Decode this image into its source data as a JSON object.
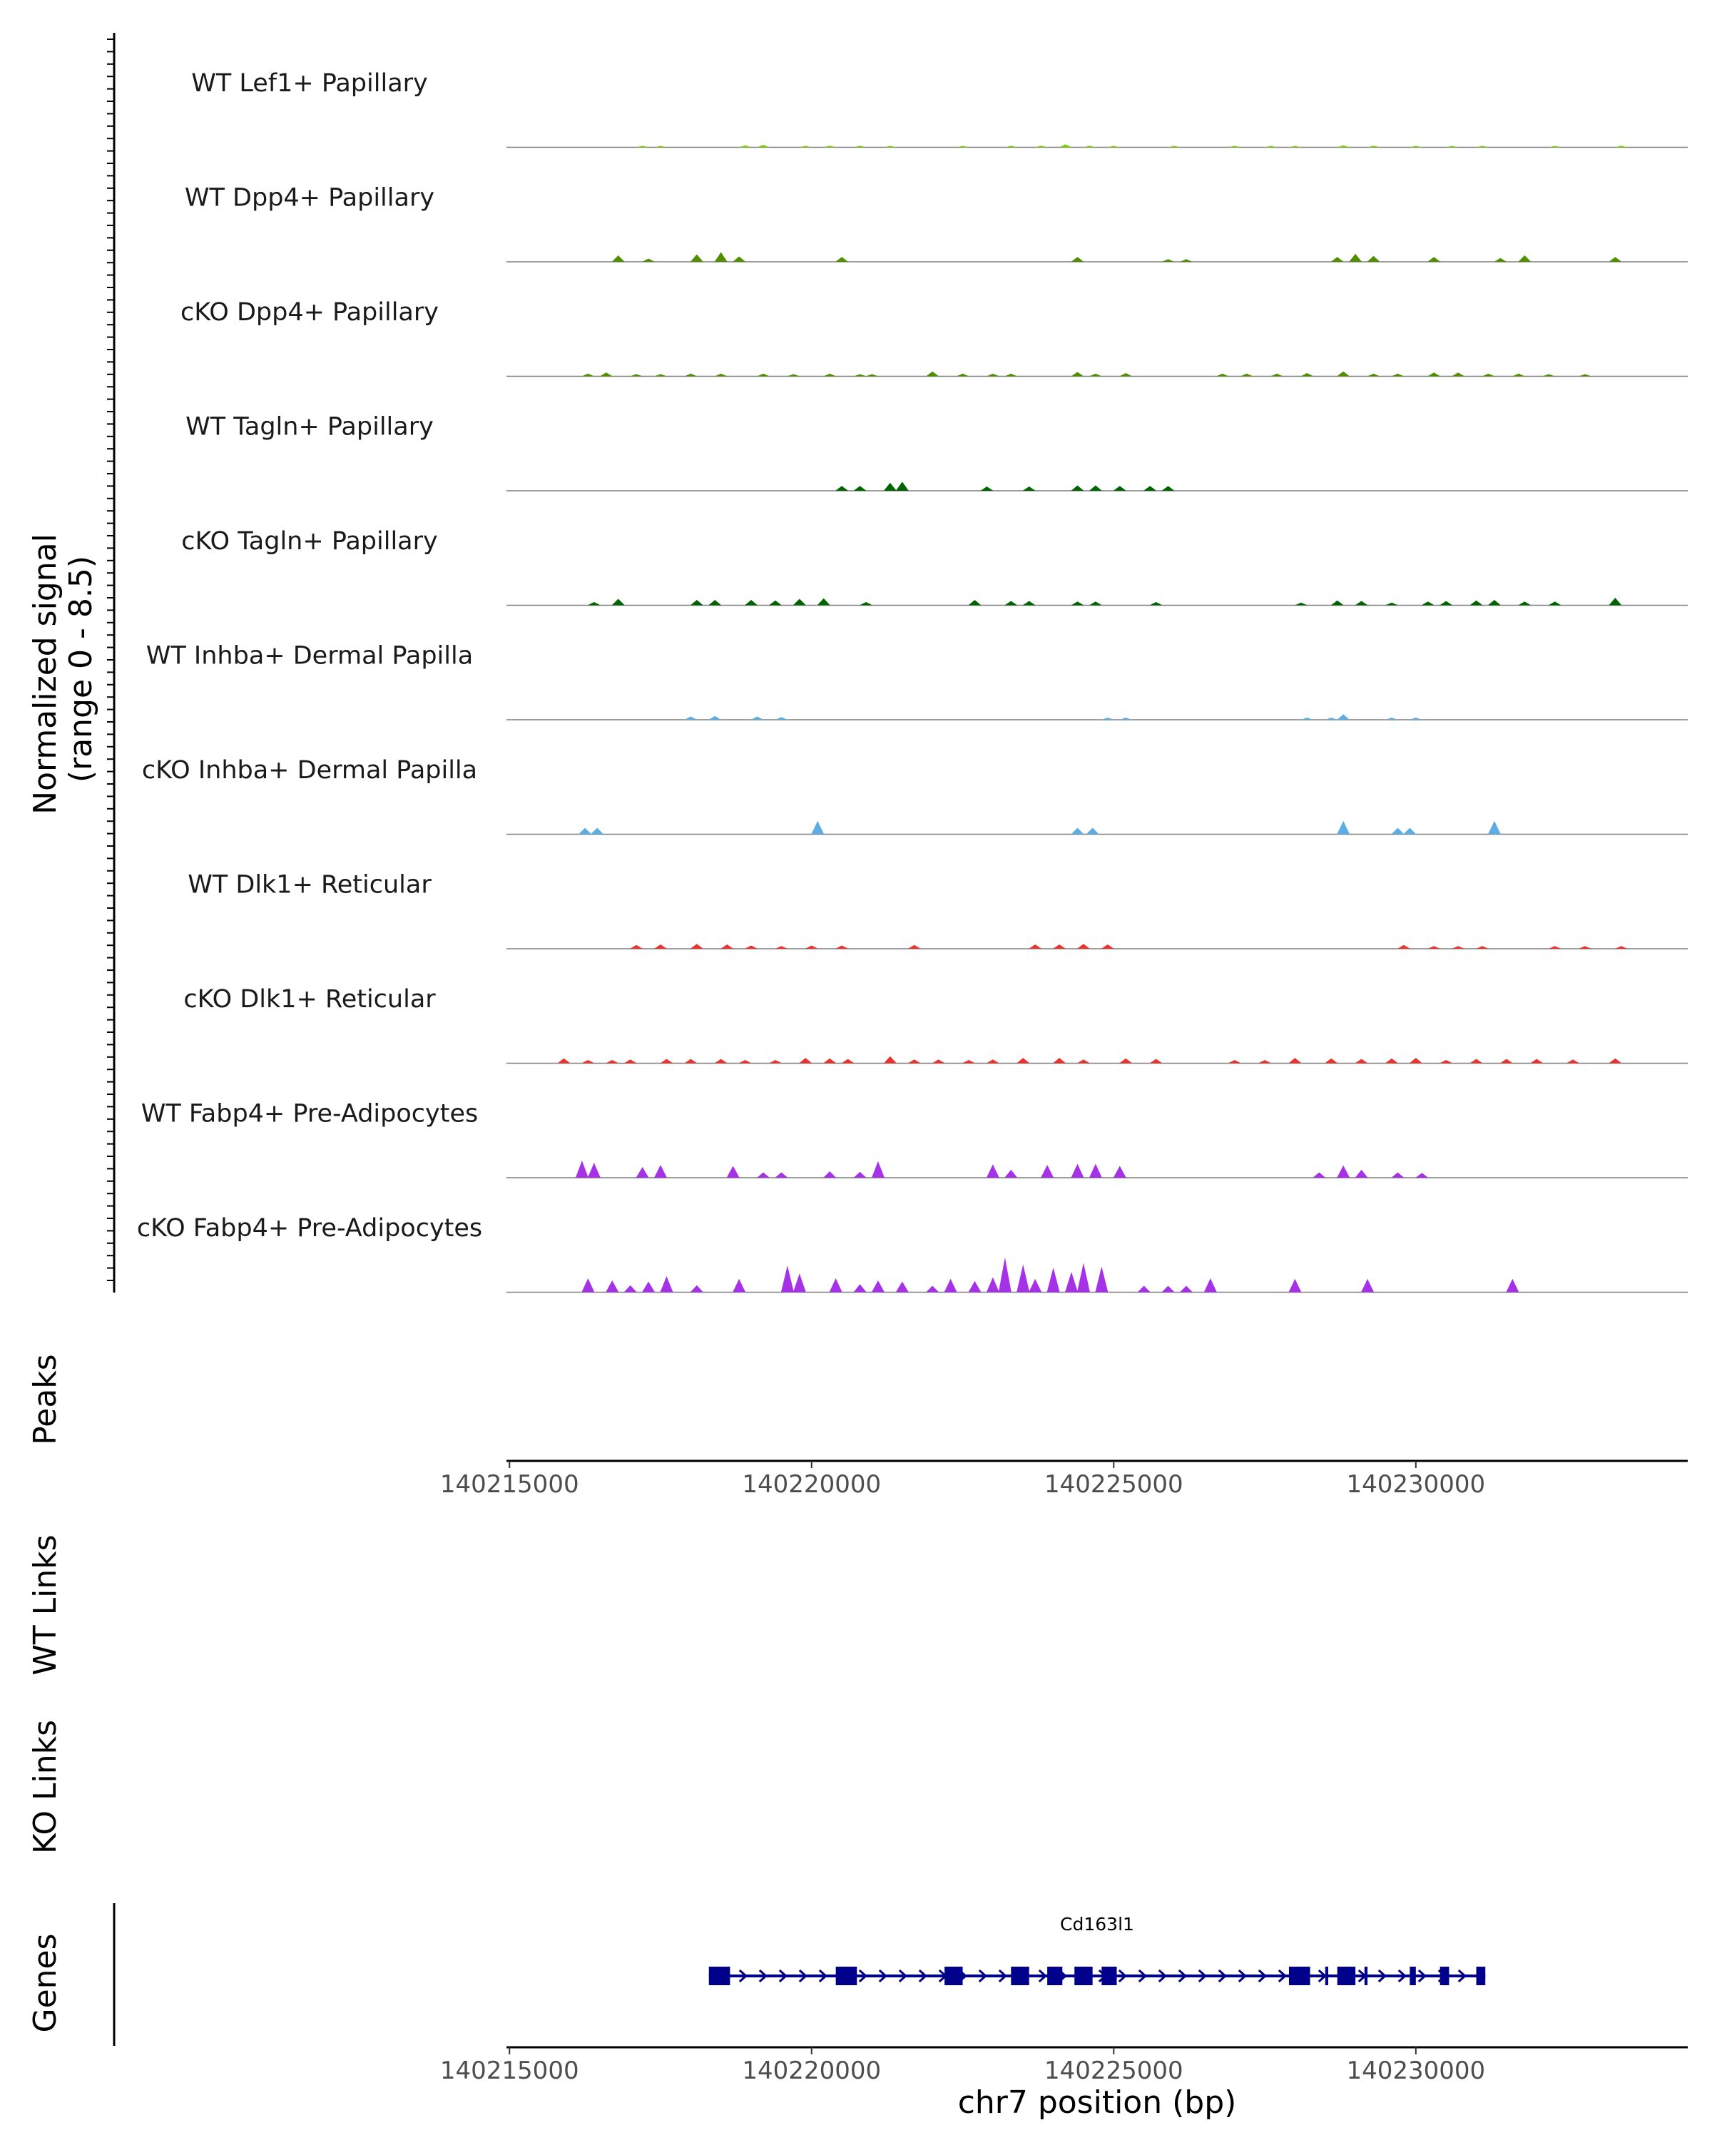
{
  "chart_data": {
    "type": "coverage",
    "title": "",
    "chromosome": "chr7",
    "xlabel": "chr7 position (bp)",
    "xlim": [
      140214950,
      140234500
    ],
    "xticks": [
      140215000,
      140220000,
      140225000,
      140230000
    ],
    "xtick_labels": [
      "140215000",
      "140220000",
      "140225000",
      "140230000"
    ],
    "ylabel_line1": "Normalized signal",
    "ylabel_line2": "(range 0 - 8.5)",
    "ylim": [
      0,
      8.5
    ],
    "panel_labels": {
      "peaks": "Peaks",
      "wt_links": "WT Links",
      "ko_links": "KO Links",
      "genes": "Genes"
    },
    "tracks": [
      {
        "name": "WT Lef1+ Papillary",
        "color": "#7CCD00",
        "peaks": [
          [
            140217200,
            0.12
          ],
          [
            140217500,
            0.15
          ],
          [
            140218900,
            0.35
          ],
          [
            140219200,
            0.45
          ],
          [
            140219900,
            0.25
          ],
          [
            140220300,
            0.3
          ],
          [
            140220800,
            0.3
          ],
          [
            140221300,
            0.25
          ],
          [
            140222500,
            0.2
          ],
          [
            140223300,
            0.3
          ],
          [
            140223800,
            0.3
          ],
          [
            140224200,
            0.55
          ],
          [
            140224600,
            0.3
          ],
          [
            140225000,
            0.2
          ],
          [
            140226000,
            0.2
          ],
          [
            140227000,
            0.25
          ],
          [
            140227600,
            0.25
          ],
          [
            140228000,
            0.2
          ],
          [
            140228800,
            0.35
          ],
          [
            140229300,
            0.3
          ],
          [
            140230000,
            0.25
          ],
          [
            140230600,
            0.25
          ],
          [
            140231100,
            0.2
          ],
          [
            140232300,
            0.2
          ],
          [
            140233400,
            0.3
          ]
        ]
      },
      {
        "name": "WT Dpp4+ Papillary",
        "color": "#4F8F00",
        "peaks": [
          [
            140216800,
            1.2
          ],
          [
            140217300,
            0.6
          ],
          [
            140218100,
            1.4
          ],
          [
            140218500,
            1.8
          ],
          [
            140218800,
            1.0
          ],
          [
            140220500,
            0.9
          ],
          [
            140224400,
            0.9
          ],
          [
            140225900,
            0.5
          ],
          [
            140226200,
            0.5
          ],
          [
            140228700,
            0.9
          ],
          [
            140229000,
            1.5
          ],
          [
            140229300,
            1.1
          ],
          [
            140230300,
            0.9
          ],
          [
            140231400,
            0.7
          ],
          [
            140231800,
            1.2
          ],
          [
            140233300,
            0.9
          ]
        ]
      },
      {
        "name": "cKO Dpp4+ Papillary",
        "color": "#4F8F00",
        "peaks": [
          [
            140216300,
            0.5
          ],
          [
            140216600,
            0.7
          ],
          [
            140217100,
            0.4
          ],
          [
            140217500,
            0.4
          ],
          [
            140218000,
            0.5
          ],
          [
            140218500,
            0.5
          ],
          [
            140219200,
            0.5
          ],
          [
            140219700,
            0.4
          ],
          [
            140220300,
            0.5
          ],
          [
            140220800,
            0.4
          ],
          [
            140221000,
            0.4
          ],
          [
            140222000,
            0.9
          ],
          [
            140222500,
            0.5
          ],
          [
            140223000,
            0.5
          ],
          [
            140223300,
            0.5
          ],
          [
            140224400,
            0.8
          ],
          [
            140224700,
            0.5
          ],
          [
            140225200,
            0.6
          ],
          [
            140226800,
            0.5
          ],
          [
            140227200,
            0.5
          ],
          [
            140227700,
            0.5
          ],
          [
            140228200,
            0.6
          ],
          [
            140228800,
            0.9
          ],
          [
            140229300,
            0.5
          ],
          [
            140229700,
            0.5
          ],
          [
            140230300,
            0.7
          ],
          [
            140230700,
            0.7
          ],
          [
            140231200,
            0.5
          ],
          [
            140231700,
            0.5
          ],
          [
            140232200,
            0.4
          ],
          [
            140232800,
            0.4
          ]
        ]
      },
      {
        "name": "WT Tagln+ Papillary",
        "color": "#006400",
        "peaks": [
          [
            140220500,
            0.9
          ],
          [
            140220800,
            0.9
          ],
          [
            140221300,
            1.5
          ],
          [
            140221500,
            1.7
          ],
          [
            140222900,
            0.8
          ],
          [
            140223600,
            0.8
          ],
          [
            140224400,
            1.0
          ],
          [
            140224700,
            1.0
          ],
          [
            140225100,
            0.9
          ],
          [
            140225600,
            0.9
          ],
          [
            140225900,
            0.9
          ]
        ]
      },
      {
        "name": "cKO Tagln+ Papillary",
        "color": "#006400",
        "peaks": [
          [
            140216400,
            0.6
          ],
          [
            140216800,
            1.2
          ],
          [
            140218100,
            1.0
          ],
          [
            140218400,
            1.0
          ],
          [
            140219000,
            1.0
          ],
          [
            140219400,
            0.9
          ],
          [
            140219800,
            1.2
          ],
          [
            140220200,
            1.3
          ],
          [
            140220900,
            0.6
          ],
          [
            140222700,
            1.0
          ],
          [
            140223300,
            0.8
          ],
          [
            140223600,
            0.8
          ],
          [
            140224400,
            0.7
          ],
          [
            140224700,
            0.7
          ],
          [
            140225700,
            0.6
          ],
          [
            140228100,
            0.5
          ],
          [
            140228700,
            0.9
          ],
          [
            140229100,
            0.8
          ],
          [
            140229600,
            0.5
          ],
          [
            140230200,
            0.7
          ],
          [
            140230500,
            0.8
          ],
          [
            140231000,
            0.9
          ],
          [
            140231300,
            1.0
          ],
          [
            140231800,
            0.7
          ],
          [
            140232300,
            0.7
          ],
          [
            140233300,
            1.4
          ]
        ]
      },
      {
        "name": "WT Inhba+ Dermal Papilla",
        "color": "#5DADE2",
        "peaks": [
          [
            140218000,
            0.6
          ],
          [
            140218400,
            0.7
          ],
          [
            140219100,
            0.6
          ],
          [
            140219500,
            0.5
          ],
          [
            140224900,
            0.4
          ],
          [
            140225200,
            0.4
          ],
          [
            140228200,
            0.4
          ],
          [
            140228600,
            0.4
          ],
          [
            140228800,
            1.0
          ],
          [
            140229600,
            0.4
          ],
          [
            140230000,
            0.4
          ]
        ]
      },
      {
        "name": "cKO Inhba+ Dermal Papilla",
        "color": "#5DADE2",
        "peaks": [
          [
            140216250,
            1.2
          ],
          [
            140216450,
            1.2
          ],
          [
            140220100,
            2.5
          ],
          [
            140224400,
            1.2
          ],
          [
            140224650,
            1.2
          ],
          [
            140228800,
            2.5
          ],
          [
            140229700,
            1.2
          ],
          [
            140229900,
            1.2
          ],
          [
            140231300,
            2.5
          ]
        ]
      },
      {
        "name": "WT Dlk1+ Reticular",
        "color": "#E8332E",
        "peaks": [
          [
            140217100,
            0.7
          ],
          [
            140217500,
            0.8
          ],
          [
            140218100,
            0.9
          ],
          [
            140218600,
            0.8
          ],
          [
            140219000,
            0.6
          ],
          [
            140219500,
            0.5
          ],
          [
            140220000,
            0.6
          ],
          [
            140220500,
            0.6
          ],
          [
            140221700,
            0.7
          ],
          [
            140223700,
            0.8
          ],
          [
            140224100,
            0.8
          ],
          [
            140224500,
            0.9
          ],
          [
            140224900,
            0.8
          ],
          [
            140229800,
            0.7
          ],
          [
            140230300,
            0.5
          ],
          [
            140230700,
            0.5
          ],
          [
            140231100,
            0.5
          ],
          [
            140232300,
            0.5
          ],
          [
            140232800,
            0.5
          ],
          [
            140233400,
            0.5
          ]
        ]
      },
      {
        "name": "cKO Dlk1+ Reticular",
        "color": "#E8332E",
        "peaks": [
          [
            140215900,
            0.9
          ],
          [
            140216300,
            0.6
          ],
          [
            140216700,
            0.6
          ],
          [
            140217000,
            0.7
          ],
          [
            140217600,
            0.8
          ],
          [
            140218000,
            0.8
          ],
          [
            140218500,
            0.8
          ],
          [
            140218900,
            0.6
          ],
          [
            140219400,
            0.6
          ],
          [
            140219900,
            1.0
          ],
          [
            140220300,
            0.9
          ],
          [
            140220600,
            0.8
          ],
          [
            140221300,
            1.3
          ],
          [
            140221700,
            0.7
          ],
          [
            140222100,
            0.7
          ],
          [
            140222600,
            0.6
          ],
          [
            140223000,
            0.7
          ],
          [
            140223500,
            1.0
          ],
          [
            140224100,
            1.0
          ],
          [
            140224500,
            0.7
          ],
          [
            140225200,
            0.9
          ],
          [
            140225700,
            0.8
          ],
          [
            140227000,
            0.6
          ],
          [
            140227500,
            0.6
          ],
          [
            140228000,
            1.0
          ],
          [
            140228600,
            0.9
          ],
          [
            140229100,
            0.8
          ],
          [
            140229600,
            0.9
          ],
          [
            140230000,
            1.0
          ],
          [
            140230500,
            0.6
          ],
          [
            140231000,
            0.8
          ],
          [
            140231500,
            0.8
          ],
          [
            140232000,
            0.8
          ],
          [
            140232600,
            0.7
          ],
          [
            140233300,
            0.9
          ]
        ]
      },
      {
        "name": "WT Fabp4+ Pre-Adipocytes",
        "color": "#A632E8",
        "peaks": [
          [
            140216200,
            3.2
          ],
          [
            140216400,
            2.8
          ],
          [
            140217200,
            2.0
          ],
          [
            140217500,
            2.4
          ],
          [
            140218700,
            2.2
          ],
          [
            140219200,
            1.0
          ],
          [
            140219500,
            1.0
          ],
          [
            140220300,
            1.2
          ],
          [
            140220800,
            1.1
          ],
          [
            140221100,
            3.1
          ],
          [
            140223000,
            2.5
          ],
          [
            140223300,
            1.5
          ],
          [
            140223900,
            2.4
          ],
          [
            140224400,
            2.6
          ],
          [
            140224700,
            2.6
          ],
          [
            140225100,
            2.2
          ],
          [
            140228400,
            1.0
          ],
          [
            140228800,
            2.3
          ],
          [
            140229100,
            1.5
          ],
          [
            140229700,
            1.0
          ],
          [
            140230100,
            0.9
          ]
        ]
      },
      {
        "name": "cKO Fabp4+ Pre-Adipocytes",
        "color": "#A632E8",
        "peaks": [
          [
            140216300,
            2.6
          ],
          [
            140216700,
            2.2
          ],
          [
            140217000,
            1.3
          ],
          [
            140217300,
            2.0
          ],
          [
            140217600,
            3.0
          ],
          [
            140218100,
            1.3
          ],
          [
            140218800,
            2.5
          ],
          [
            140219600,
            5.0
          ],
          [
            140219800,
            3.5
          ],
          [
            140220400,
            2.6
          ],
          [
            140220800,
            1.5
          ],
          [
            140221100,
            2.2
          ],
          [
            140221500,
            2.0
          ],
          [
            140222000,
            1.2
          ],
          [
            140222300,
            2.5
          ],
          [
            140222700,
            2.1
          ],
          [
            140223000,
            2.8
          ],
          [
            140223200,
            6.5
          ],
          [
            140223500,
            5.2
          ],
          [
            140223700,
            2.5
          ],
          [
            140224000,
            4.6
          ],
          [
            140224300,
            3.8
          ],
          [
            140224500,
            5.5
          ],
          [
            140224800,
            4.8
          ],
          [
            140225500,
            1.2
          ],
          [
            140225900,
            1.2
          ],
          [
            140226200,
            1.2
          ],
          [
            140226600,
            2.6
          ],
          [
            140228000,
            2.5
          ],
          [
            140229200,
            2.5
          ],
          [
            140231600,
            2.5
          ]
        ]
      }
    ],
    "gene": {
      "name": "Cd163l1",
      "start": 140218300,
      "end": 140231150,
      "strand": "+",
      "color": "#00008B",
      "exons": [
        [
          140218300,
          140218650
        ],
        [
          140220400,
          140220750
        ],
        [
          140222200,
          140222500
        ],
        [
          140223300,
          140223600
        ],
        [
          140223900,
          140224150
        ],
        [
          140224350,
          140224650
        ],
        [
          140224800,
          140225050
        ],
        [
          140227900,
          140228250
        ],
        [
          140228500,
          140228550
        ],
        [
          140228700,
          140229000
        ],
        [
          140229150,
          140229200
        ],
        [
          140229900,
          140230000
        ],
        [
          140230400,
          140230550
        ],
        [
          140231000,
          140231150
        ]
      ]
    }
  }
}
